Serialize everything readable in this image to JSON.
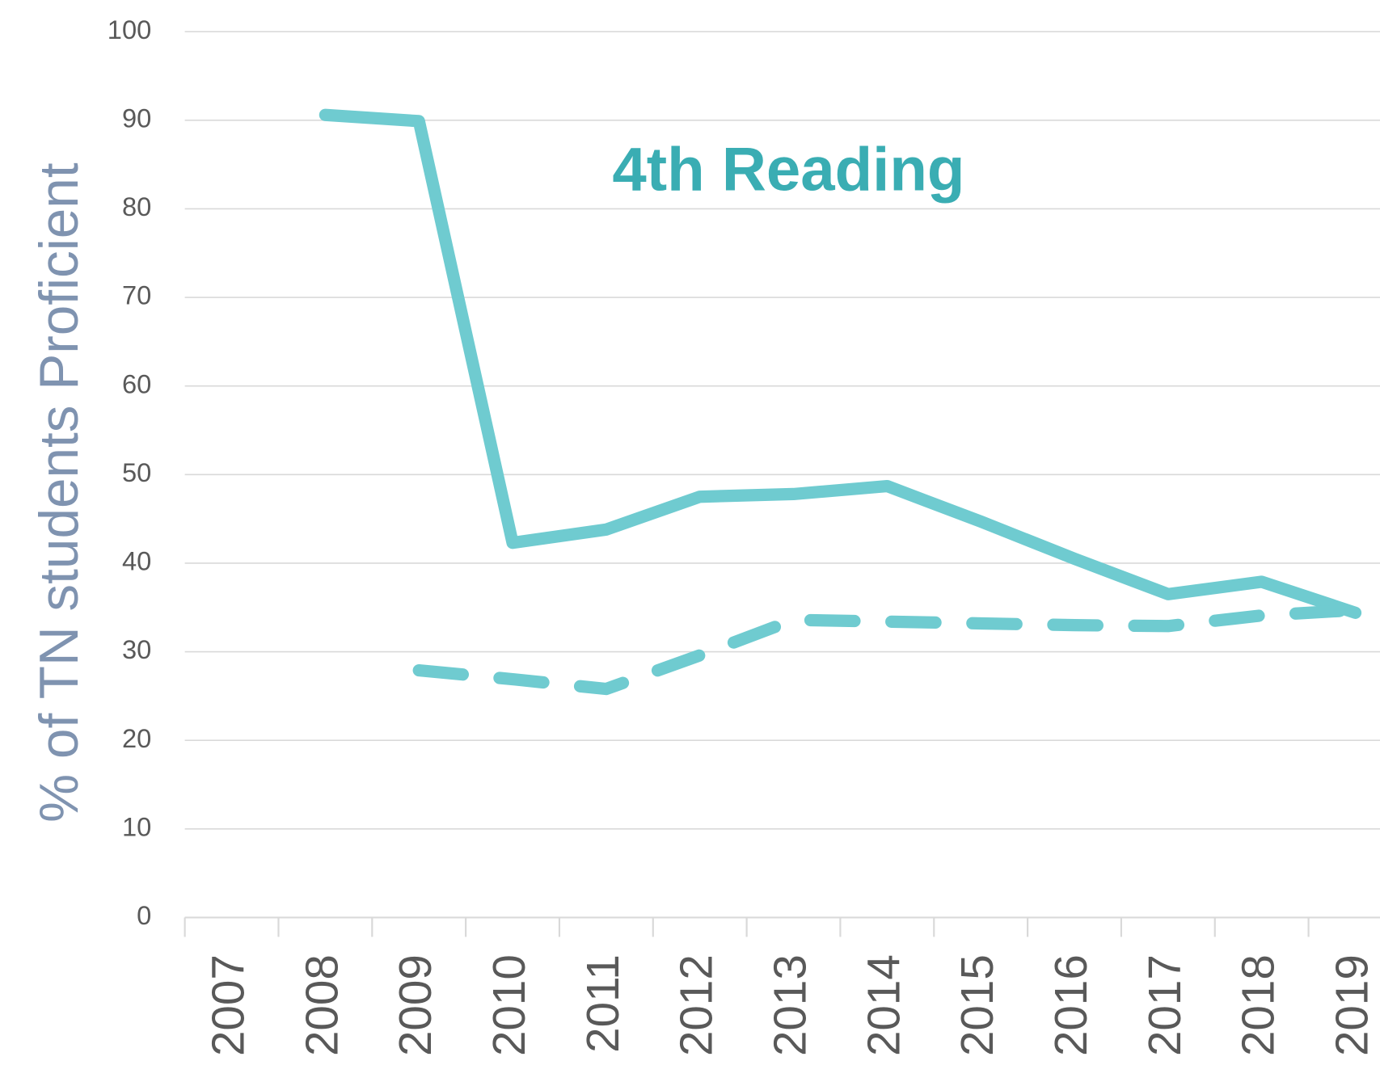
{
  "chart_data": {
    "type": "line",
    "y_label": "% of TN students Proficient",
    "annotation": "4th Reading",
    "categories": [
      "2007",
      "2008",
      "2009",
      "2010",
      "2011",
      "2012",
      "2013",
      "2014",
      "2015",
      "2016",
      "2017",
      "2018",
      "2019"
    ],
    "series": [
      {
        "color": "#6fcbd0",
        "style": "solid",
        "values": [
          null,
          90.6,
          89.9,
          42.3,
          43.8,
          47.5,
          47.8,
          48.7,
          44.7,
          40.5,
          36.5,
          37.9,
          34.4
        ]
      },
      {
        "color": "#6fcbd0",
        "style": "dashed",
        "values": [
          null,
          null,
          27.9,
          26.9,
          25.8,
          29.6,
          33.6,
          33.4,
          33.2,
          33.0,
          32.9,
          34.1,
          34.7
        ]
      }
    ],
    "ylim": [
      0,
      100
    ],
    "yticks": [
      0,
      10,
      20,
      30,
      40,
      50,
      60,
      70,
      80,
      90,
      100
    ],
    "grid": true
  }
}
